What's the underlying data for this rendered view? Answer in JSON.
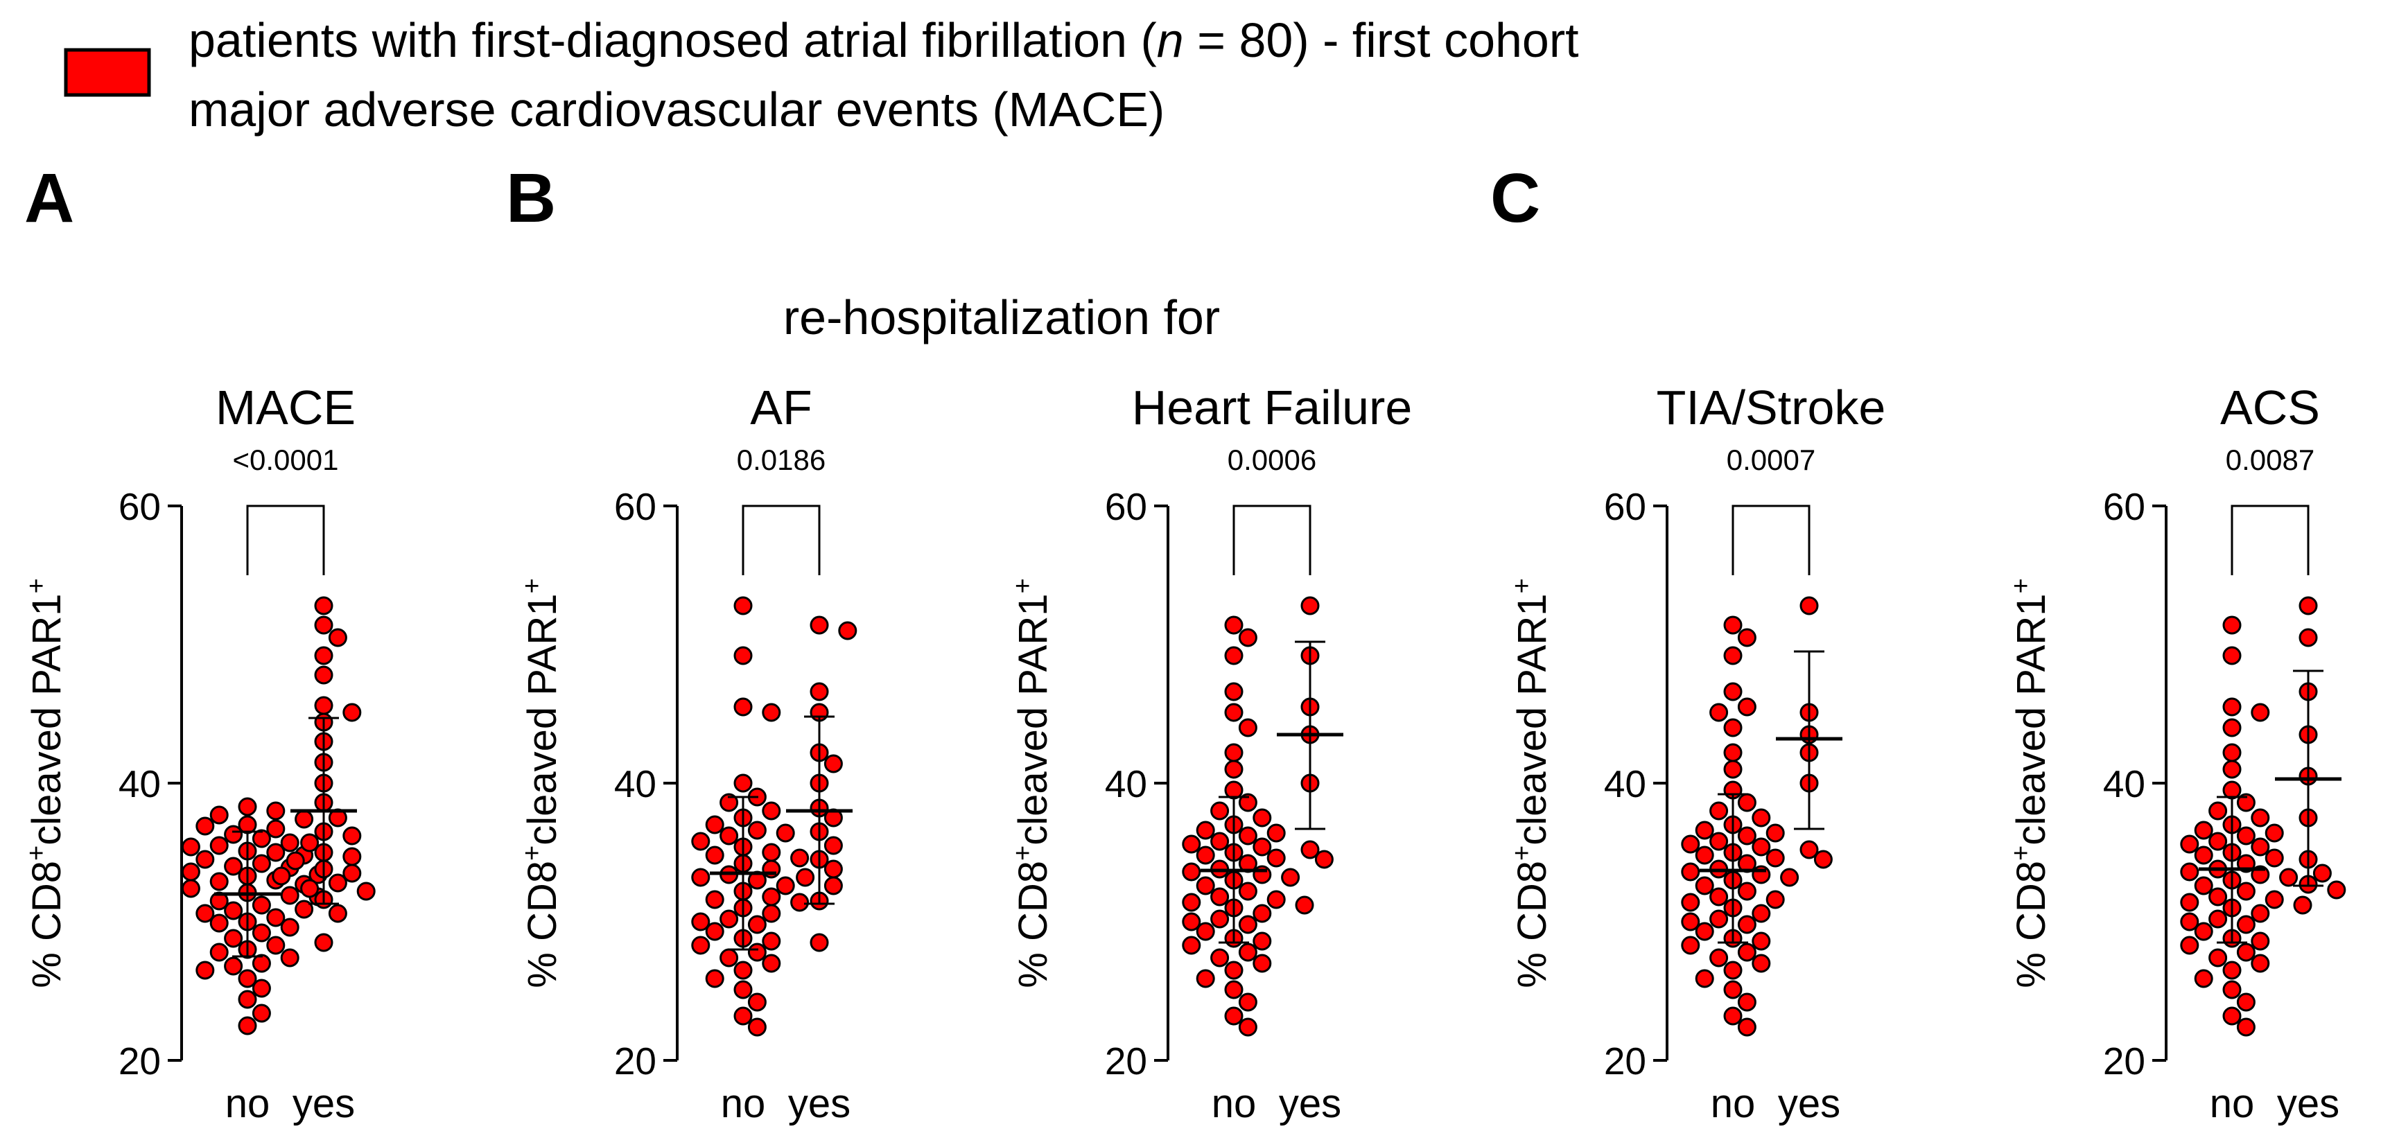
{
  "legend": {
    "swatch_color": "#ff0000",
    "line1_prefix": "patients with first-diagnosed atrial fibrillation (",
    "line1_n": "n",
    "line1_suffix": " = 80) - first cohort",
    "line2": "major adverse cardiovascular events (MACE)"
  },
  "panel_labels": {
    "a": "A",
    "b": "B",
    "c": "C"
  },
  "group_title": "re-hospitalization for",
  "colors": {
    "point_fill": "#ff0000",
    "point_stroke": "#000000",
    "axis": "#000000"
  },
  "chart_data": [
    {
      "type": "scatter",
      "panel": "A",
      "title": "MACE",
      "p_value": "<0.0001",
      "ylabel": {
        "pre": "% CD8",
        "sup1": "+",
        "mid": "cleaved PAR1",
        "sup2": "+"
      },
      "ylim": [
        20,
        60
      ],
      "yticks": [
        20,
        40,
        60
      ],
      "categories": [
        "no",
        "yes"
      ],
      "series": [
        {
          "name": "no",
          "mean": 32.0,
          "sd_low": 27.5,
          "sd_high": 36.5,
          "values": [
            38.3,
            38.0,
            37.7,
            37.4,
            37.0,
            36.7,
            36.3,
            36.0,
            35.7,
            35.4,
            35.1,
            34.8,
            34.5,
            34.2,
            33.9,
            33.6,
            33.3,
            33.0,
            32.7,
            32.4,
            32.1,
            31.8,
            31.5,
            31.2,
            30.9,
            30.6,
            30.3,
            30.0,
            29.6,
            29.2,
            28.8,
            28.3,
            27.8,
            27.4,
            27.0,
            26.5,
            25.9,
            25.2,
            24.4,
            23.4,
            22.5,
            36.9,
            35.5,
            34.0,
            32.9,
            31.9,
            30.8,
            29.9,
            28.0,
            26.8,
            35.0,
            33.4
          ]
        },
        {
          "name": "yes",
          "mean": 38.0,
          "sd_low": 31.3,
          "sd_high": 44.7,
          "values": [
            52.8,
            51.4,
            50.5,
            49.2,
            47.8,
            45.6,
            45.1,
            44.4,
            43.0,
            41.5,
            40.0,
            38.6,
            37.5,
            36.5,
            35.7,
            35.0,
            34.4,
            33.8,
            33.3,
            32.8,
            32.2,
            31.6,
            30.6,
            28.5,
            36.2,
            34.7,
            33.5,
            32.4
          ]
        }
      ]
    },
    {
      "type": "scatter",
      "panel": "B",
      "title": "AF",
      "p_value": "0.0186",
      "ylabel": {
        "pre": "% CD8",
        "sup1": "+",
        "mid": "cleaved PAR1",
        "sup2": "+"
      },
      "ylim": [
        20,
        60
      ],
      "yticks": [
        20,
        40,
        60
      ],
      "categories": [
        "no",
        "yes"
      ],
      "series": [
        {
          "name": "no",
          "mean": 33.5,
          "sd_low": 28.0,
          "sd_high": 39.0,
          "values": [
            52.8,
            49.2,
            45.5,
            45.1,
            40.0,
            39.0,
            38.6,
            38.0,
            37.5,
            37.0,
            36.6,
            36.2,
            35.8,
            35.4,
            35.0,
            34.6,
            34.2,
            33.8,
            33.4,
            33.0,
            32.6,
            32.2,
            31.8,
            31.4,
            31.0,
            30.6,
            30.2,
            29.8,
            29.3,
            28.8,
            28.3,
            27.8,
            27.4,
            27.0,
            26.5,
            25.9,
            25.1,
            24.2,
            23.2,
            22.4,
            36.4,
            34.8,
            33.2,
            31.6,
            30.0,
            28.6
          ]
        },
        {
          "name": "yes",
          "mean": 38.0,
          "sd_low": 31.3,
          "sd_high": 44.8,
          "values": [
            51.4,
            51.0,
            46.6,
            45.1,
            42.2,
            41.4,
            40.0,
            38.2,
            37.5,
            36.5,
            35.5,
            34.5,
            33.8,
            33.2,
            32.6,
            31.5,
            28.5
          ]
        }
      ]
    },
    {
      "type": "scatter",
      "panel": "B",
      "title": "Heart Failure",
      "p_value": "0.0006",
      "ylabel": {
        "pre": "% CD8",
        "sup1": "+",
        "mid": "cleaved PAR1",
        "sup2": "+"
      },
      "ylim": [
        20,
        60
      ],
      "yticks": [
        20,
        40,
        60
      ],
      "categories": [
        "no",
        "yes"
      ],
      "series": [
        {
          "name": "no",
          "mean": 33.7,
          "sd_low": 28.5,
          "sd_high": 39.0,
          "values": [
            51.4,
            50.5,
            49.2,
            46.6,
            45.1,
            44.0,
            42.2,
            41.0,
            39.5,
            38.6,
            38.0,
            37.5,
            37.0,
            36.6,
            36.2,
            35.8,
            35.4,
            35.0,
            34.6,
            34.2,
            33.8,
            33.4,
            33.0,
            32.6,
            32.2,
            31.8,
            31.4,
            31.0,
            30.6,
            30.2,
            29.8,
            29.3,
            28.8,
            28.3,
            27.8,
            27.4,
            27.0,
            26.5,
            25.9,
            25.1,
            24.2,
            23.2,
            22.4,
            36.4,
            34.8,
            33.2,
            31.6,
            30.0,
            28.6,
            35.6,
            33.6,
            31.2
          ]
        },
        {
          "name": "yes",
          "mean": 43.5,
          "sd_low": 36.7,
          "sd_high": 50.2,
          "values": [
            52.8,
            49.2,
            45.5,
            43.5,
            40.0,
            35.2,
            34.5
          ]
        }
      ]
    },
    {
      "type": "scatter",
      "panel": "C",
      "title": "TIA/Stroke",
      "p_value": "0.0007",
      "ylabel": {
        "pre": "% CD8",
        "sup1": "+",
        "mid": "cleaved PAR1",
        "sup2": "+"
      },
      "ylim": [
        20,
        60
      ],
      "yticks": [
        20,
        40,
        60
      ],
      "categories": [
        "no",
        "yes"
      ],
      "series": [
        {
          "name": "no",
          "mean": 33.7,
          "sd_low": 28.5,
          "sd_high": 39.2,
          "values": [
            51.4,
            50.5,
            49.2,
            46.6,
            45.5,
            45.1,
            44.0,
            42.2,
            41.0,
            39.5,
            38.6,
            38.0,
            37.5,
            37.0,
            36.6,
            36.2,
            35.8,
            35.4,
            35.0,
            34.6,
            34.2,
            33.8,
            33.4,
            33.0,
            32.6,
            32.2,
            31.8,
            31.4,
            31.0,
            30.6,
            30.2,
            29.8,
            29.3,
            28.8,
            28.3,
            27.8,
            27.4,
            27.0,
            26.5,
            25.9,
            25.1,
            24.2,
            23.2,
            22.4,
            36.4,
            34.8,
            33.2,
            31.6,
            30.0,
            28.6,
            35.6,
            33.6
          ]
        },
        {
          "name": "yes",
          "mean": 43.2,
          "sd_low": 36.7,
          "sd_high": 49.5,
          "values": [
            52.8,
            45.1,
            43.5,
            42.2,
            40.0,
            35.2,
            34.5
          ]
        }
      ]
    },
    {
      "type": "scatter",
      "panel": "C",
      "title": "ACS",
      "p_value": "0.0087",
      "ylabel": {
        "pre": "% CD8",
        "sup1": "+",
        "mid": "cleaved PAR1",
        "sup2": "+"
      },
      "ylim": [
        20,
        60
      ],
      "yticks": [
        20,
        40,
        60
      ],
      "categories": [
        "no",
        "yes"
      ],
      "series": [
        {
          "name": "no",
          "mean": 33.8,
          "sd_low": 28.5,
          "sd_high": 39.0,
          "values": [
            51.4,
            49.2,
            45.5,
            45.1,
            44.0,
            42.2,
            41.0,
            39.5,
            38.6,
            38.0,
            37.5,
            37.0,
            36.6,
            36.2,
            35.8,
            35.4,
            35.0,
            34.6,
            34.2,
            33.8,
            33.4,
            33.0,
            32.6,
            32.2,
            31.8,
            31.4,
            31.0,
            30.6,
            30.2,
            29.8,
            29.3,
            28.8,
            28.3,
            27.8,
            27.4,
            27.0,
            26.5,
            25.9,
            25.1,
            24.2,
            23.2,
            22.4,
            36.4,
            34.8,
            33.2,
            31.6,
            30.0,
            28.6,
            35.6,
            33.6,
            31.2
          ]
        },
        {
          "name": "yes",
          "mean": 40.3,
          "sd_low": 32.6,
          "sd_high": 48.1,
          "values": [
            52.8,
            50.5,
            46.6,
            43.5,
            40.5,
            37.5,
            34.5,
            33.5,
            32.7,
            32.3
          ]
        }
      ]
    }
  ]
}
